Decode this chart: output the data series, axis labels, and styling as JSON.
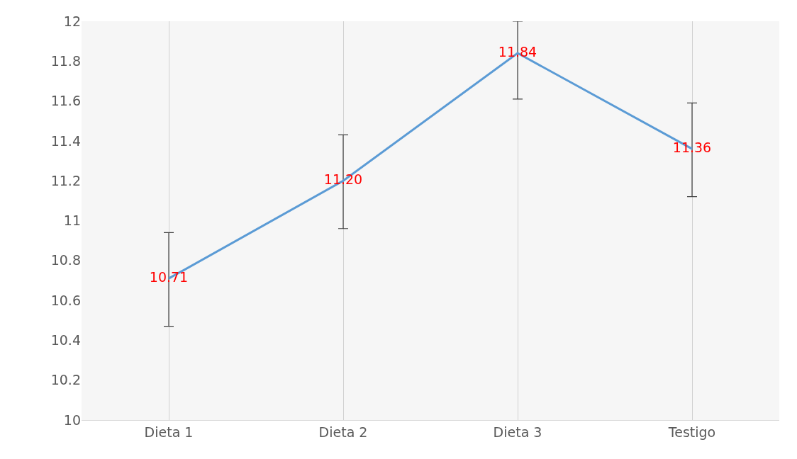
{
  "chart_data": {
    "type": "line",
    "categories": [
      "Dieta 1",
      "Dieta 2",
      "Dieta 3",
      "Testigo"
    ],
    "series": [
      {
        "color": "#5b9bd5",
        "values": [
          10.71,
          11.2,
          11.84,
          11.36
        ],
        "errors": [
          [
            10.47,
            10.94
          ],
          [
            10.96,
            11.43
          ],
          [
            11.61,
            12.0
          ],
          [
            11.12,
            11.59
          ]
        ],
        "value_labels": [
          "10.71",
          "11.20",
          "11.84",
          "11.36"
        ]
      }
    ],
    "ylim": [
      10,
      12
    ],
    "yticks": [
      10,
      10.2,
      10.4,
      10.6,
      10.8,
      11,
      11.2,
      11.4,
      11.6,
      11.8,
      12
    ],
    "grid": "x",
    "marker": "none",
    "line_style": "solid"
  }
}
